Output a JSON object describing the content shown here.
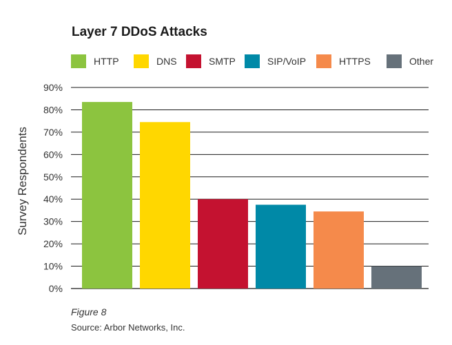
{
  "chart_data": {
    "type": "bar",
    "title": "Layer 7 DDoS Attacks",
    "ylabel": "Survey Respondents",
    "xlabel": "",
    "ylim": [
      0,
      90
    ],
    "yticks": [
      "0%",
      "10%",
      "20%",
      "30%",
      "40%",
      "50%",
      "60%",
      "70%",
      "80%",
      "90%"
    ],
    "categories": [
      "HTTP",
      "DNS",
      "SMTP",
      "SIP/VoIP",
      "HTTPS",
      "Other"
    ],
    "values": [
      83.5,
      74.5,
      40,
      37.5,
      34.5,
      10
    ],
    "colors": [
      "#8cc43f",
      "#ffd700",
      "#c41230",
      "#0089a7",
      "#f58a4b",
      "#66717a"
    ],
    "grid": true,
    "legend_position": "top"
  },
  "legend": [
    {
      "label": "HTTP",
      "color": "#8cc43f"
    },
    {
      "label": "DNS",
      "color": "#ffd700"
    },
    {
      "label": "SMTP",
      "color": "#c41230"
    },
    {
      "label": "SIP/VoIP",
      "color": "#0089a7"
    },
    {
      "label": "HTTPS",
      "color": "#f58a4b"
    },
    {
      "label": "Other",
      "color": "#66717a"
    }
  ],
  "caption": {
    "figure": "Figure 8",
    "source": "Source: Arbor Networks, Inc."
  }
}
